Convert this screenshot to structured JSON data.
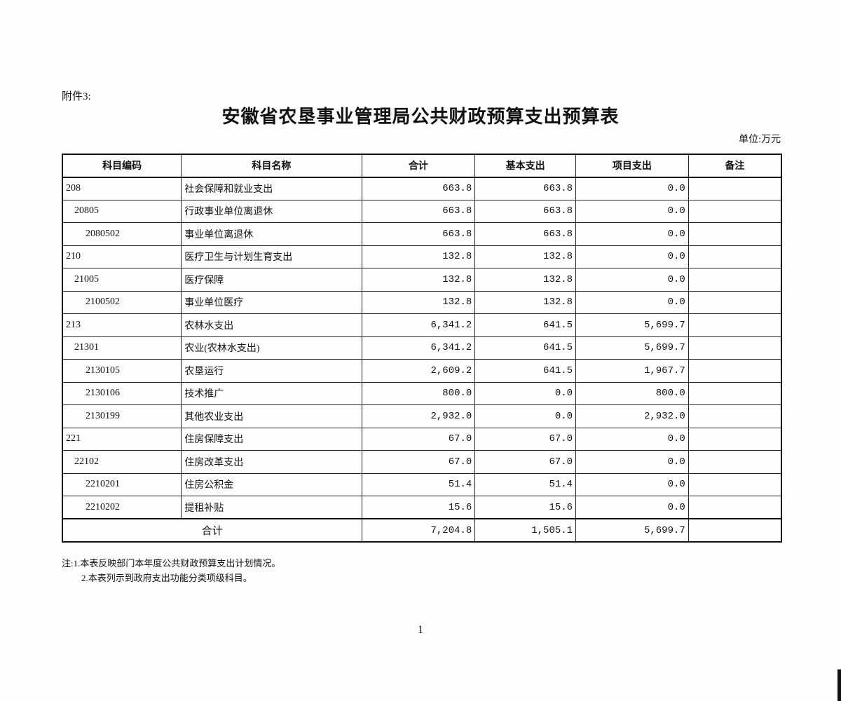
{
  "annex": "附件3:",
  "title": "安徽省农垦事业管理局公共财政预算支出预算表",
  "unit": "单位:万元",
  "columns": [
    "科目编码",
    "科目名称",
    "合计",
    "基本支出",
    "项目支出",
    "备注"
  ],
  "rows": [
    {
      "code": "208",
      "level": 0,
      "name": "社会保障和就业支出",
      "total": "663.8",
      "basic": "663.8",
      "project": "0.0",
      "note": ""
    },
    {
      "code": "20805",
      "level": 1,
      "name": "行政事业单位离退休",
      "total": "663.8",
      "basic": "663.8",
      "project": "0.0",
      "note": ""
    },
    {
      "code": "2080502",
      "level": 2,
      "name": "事业单位离退休",
      "total": "663.8",
      "basic": "663.8",
      "project": "0.0",
      "note": ""
    },
    {
      "code": "210",
      "level": 0,
      "name": "医疗卫生与计划生育支出",
      "total": "132.8",
      "basic": "132.8",
      "project": "0.0",
      "note": ""
    },
    {
      "code": "21005",
      "level": 1,
      "name": "医疗保障",
      "total": "132.8",
      "basic": "132.8",
      "project": "0.0",
      "note": ""
    },
    {
      "code": "2100502",
      "level": 2,
      "name": "事业单位医疗",
      "total": "132.8",
      "basic": "132.8",
      "project": "0.0",
      "note": ""
    },
    {
      "code": "213",
      "level": 0,
      "name": "农林水支出",
      "total": "6,341.2",
      "basic": "641.5",
      "project": "5,699.7",
      "note": ""
    },
    {
      "code": "21301",
      "level": 1,
      "name": "农业(农林水支出)",
      "total": "6,341.2",
      "basic": "641.5",
      "project": "5,699.7",
      "note": ""
    },
    {
      "code": "2130105",
      "level": 2,
      "name": "农垦运行",
      "total": "2,609.2",
      "basic": "641.5",
      "project": "1,967.7",
      "note": ""
    },
    {
      "code": "2130106",
      "level": 2,
      "name": "技术推广",
      "total": "800.0",
      "basic": "0.0",
      "project": "800.0",
      "note": ""
    },
    {
      "code": "2130199",
      "level": 2,
      "name": "其他农业支出",
      "total": "2,932.0",
      "basic": "0.0",
      "project": "2,932.0",
      "note": ""
    },
    {
      "code": "221",
      "level": 0,
      "name": "住房保障支出",
      "total": "67.0",
      "basic": "67.0",
      "project": "0.0",
      "note": ""
    },
    {
      "code": "22102",
      "level": 1,
      "name": "住房改革支出",
      "total": "67.0",
      "basic": "67.0",
      "project": "0.0",
      "note": ""
    },
    {
      "code": "2210201",
      "level": 2,
      "name": "住房公积金",
      "total": "51.4",
      "basic": "51.4",
      "project": "0.0",
      "note": ""
    },
    {
      "code": "2210202",
      "level": 2,
      "name": "提租补贴",
      "total": "15.6",
      "basic": "15.6",
      "project": "0.0",
      "note": ""
    }
  ],
  "total": {
    "label": "合计",
    "total": "7,204.8",
    "basic": "1,505.1",
    "project": "5,699.7",
    "note": ""
  },
  "notes": [
    "注:1.本表反映部门本年度公共财政预算支出计划情况。",
    "2.本表列示到政府支出功能分类项级科目。"
  ],
  "page_number": "1"
}
